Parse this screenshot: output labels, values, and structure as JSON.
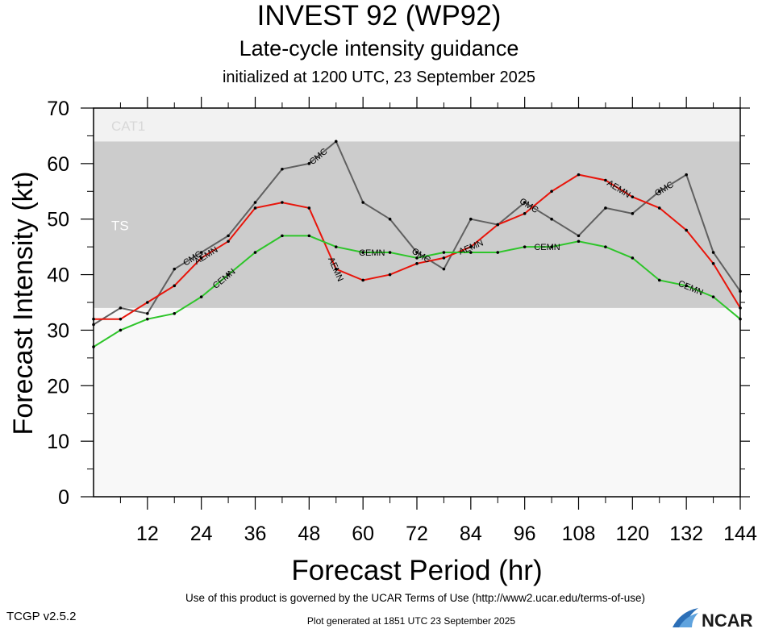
{
  "header": {
    "title": "INVEST 92 (WP92)",
    "subtitle": "Late-cycle intensity guidance",
    "init_line": "initialized at 1200 UTC, 23 September 2025"
  },
  "footer": {
    "terms": "Use of this product is governed by the UCAR Terms of Use (http://www2.ucar.edu/terms-of-use)",
    "version": "TCGP v2.5.2",
    "generated": "Plot generated at 1851 UTC   23 September 2025",
    "logo_text": "NCAR"
  },
  "chart_data": {
    "type": "line",
    "xlabel": "Forecast Period (hr)",
    "ylabel": "Forecast Intensity (kt)",
    "xlim": [
      0,
      144
    ],
    "ylim": [
      0,
      70
    ],
    "x_ticks": [
      12,
      24,
      36,
      48,
      60,
      72,
      84,
      96,
      108,
      120,
      132,
      144
    ],
    "y_ticks": [
      0,
      10,
      20,
      30,
      40,
      50,
      60,
      70
    ],
    "bands": [
      {
        "label": "TS",
        "from": 34,
        "to": 64,
        "color": "#cccccc"
      },
      {
        "label": "CAT1",
        "from": 64,
        "to": 70,
        "color": "#f2f2f2"
      }
    ],
    "series": [
      {
        "name": "CMC",
        "color": "#606060",
        "x": [
          0,
          6,
          12,
          18,
          24,
          30,
          36,
          42,
          48,
          54,
          60,
          66,
          72,
          78,
          84,
          90,
          96,
          102,
          108,
          114,
          120,
          126,
          132,
          138,
          144
        ],
        "y": [
          31,
          34,
          33,
          41,
          44,
          47,
          53,
          59,
          60,
          64,
          53,
          50,
          44,
          41,
          50,
          49,
          53,
          50,
          47,
          52,
          51,
          55,
          58,
          44,
          37
        ],
        "labels_at": [
          22,
          50,
          73,
          97,
          127
        ]
      },
      {
        "name": "AEMN",
        "color": "#e8150b",
        "x": [
          0,
          6,
          12,
          18,
          24,
          30,
          36,
          42,
          48,
          54,
          60,
          66,
          72,
          78,
          84,
          90,
          96,
          102,
          108,
          114,
          120,
          126,
          132,
          138,
          144
        ],
        "y": [
          32,
          32,
          35,
          38,
          43,
          46,
          52,
          53,
          52,
          41,
          39,
          40,
          42,
          43,
          45,
          49,
          51,
          55,
          58,
          57,
          54,
          52,
          48,
          42,
          34
        ],
        "labels_at": [
          25,
          54,
          84,
          117
        ]
      },
      {
        "name": "CEMN",
        "color": "#2ec52a",
        "x": [
          0,
          6,
          12,
          18,
          24,
          30,
          36,
          42,
          48,
          54,
          60,
          66,
          72,
          78,
          84,
          90,
          96,
          102,
          108,
          114,
          120,
          126,
          132,
          138,
          144
        ],
        "y": [
          27,
          30,
          32,
          33,
          36,
          40,
          44,
          47,
          47,
          45,
          44,
          44,
          43,
          44,
          44,
          44,
          45,
          45,
          46,
          45,
          43,
          39,
          38,
          36,
          32
        ],
        "labels_at": [
          29,
          62,
          101,
          133
        ]
      }
    ]
  }
}
